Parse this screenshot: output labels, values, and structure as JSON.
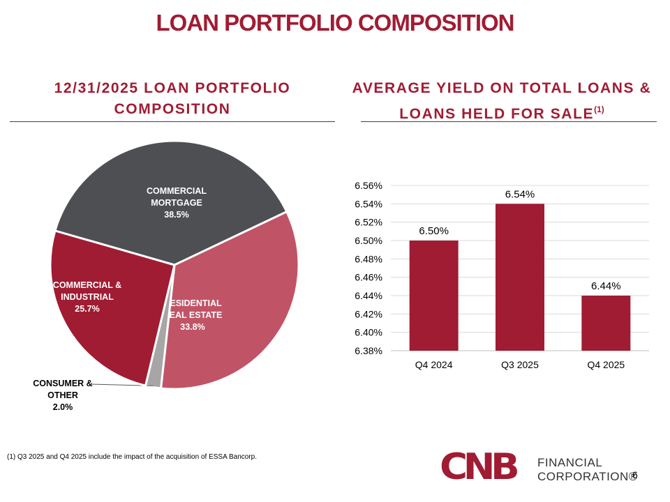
{
  "page": {
    "title": "LOAN PORTFOLIO COMPOSITION",
    "footnote": "(1) Q3 2025 and Q4 2025 include the impact of the acquisition of ESSA Bancorp.",
    "page_number": "6",
    "logo": {
      "mark": "CNB",
      "line1": "FINANCIAL",
      "line2": "CORPORATION®"
    }
  },
  "left_section": {
    "title_line1": "12/31/2025 LOAN PORTFOLIO",
    "title_line2": "COMPOSITION"
  },
  "right_section": {
    "title_line1": "AVERAGE YIELD ON TOTAL LOANS &",
    "title_line2": "LOANS HELD FOR SALE",
    "title_sup": "(1)"
  },
  "colors": {
    "brand": "#a01c33",
    "commercial_mortgage": "#4d4f53",
    "residential": "#c05466",
    "consumer": "#a6a6a6",
    "commercial_industrial": "#a01c33",
    "bar": "#a01c33",
    "grid": "#d9d9d9"
  },
  "chart_data": [
    {
      "type": "pie",
      "title": "12/31/2025 LOAN PORTFOLIO COMPOSITION",
      "slices": [
        {
          "name": "COMMERCIAL MORTGAGE",
          "lines": [
            "COMMERCIAL",
            "MORTGAGE"
          ],
          "value": 38.5,
          "label": "38.5%",
          "color": "#4d4f53"
        },
        {
          "name": "RESIDENTIAL REAL ESTATE",
          "lines": [
            "RESIDENTIAL",
            "REAL ESTATE"
          ],
          "value": 33.8,
          "label": "33.8%",
          "color": "#c05466"
        },
        {
          "name": "CONSUMER & OTHER",
          "lines": [
            "CONSUMER &",
            "OTHER"
          ],
          "value": 2.0,
          "label": "2.0%",
          "color": "#a6a6a6"
        },
        {
          "name": "COMMERCIAL & INDUSTRIAL",
          "lines": [
            "COMMERCIAL &",
            "INDUSTRIAL"
          ],
          "value": 25.7,
          "label": "25.7%",
          "color": "#a01c33"
        }
      ]
    },
    {
      "type": "bar",
      "title": "AVERAGE YIELD ON TOTAL LOANS & LOANS HELD FOR SALE(1)",
      "categories": [
        "Q4 2024",
        "Q3 2025",
        "Q4 2025"
      ],
      "values": [
        6.5,
        6.54,
        6.44
      ],
      "data_labels": [
        "6.50%",
        "6.54%",
        "6.44%"
      ],
      "ylim": [
        6.38,
        6.56
      ],
      "yticks": [
        6.38,
        6.4,
        6.42,
        6.44,
        6.46,
        6.48,
        6.5,
        6.52,
        6.54,
        6.56
      ],
      "ytick_labels": [
        "6.38%",
        "6.40%",
        "6.42%",
        "6.44%",
        "6.46%",
        "6.48%",
        "6.50%",
        "6.52%",
        "6.54%",
        "6.56%"
      ],
      "grid": true
    }
  ]
}
